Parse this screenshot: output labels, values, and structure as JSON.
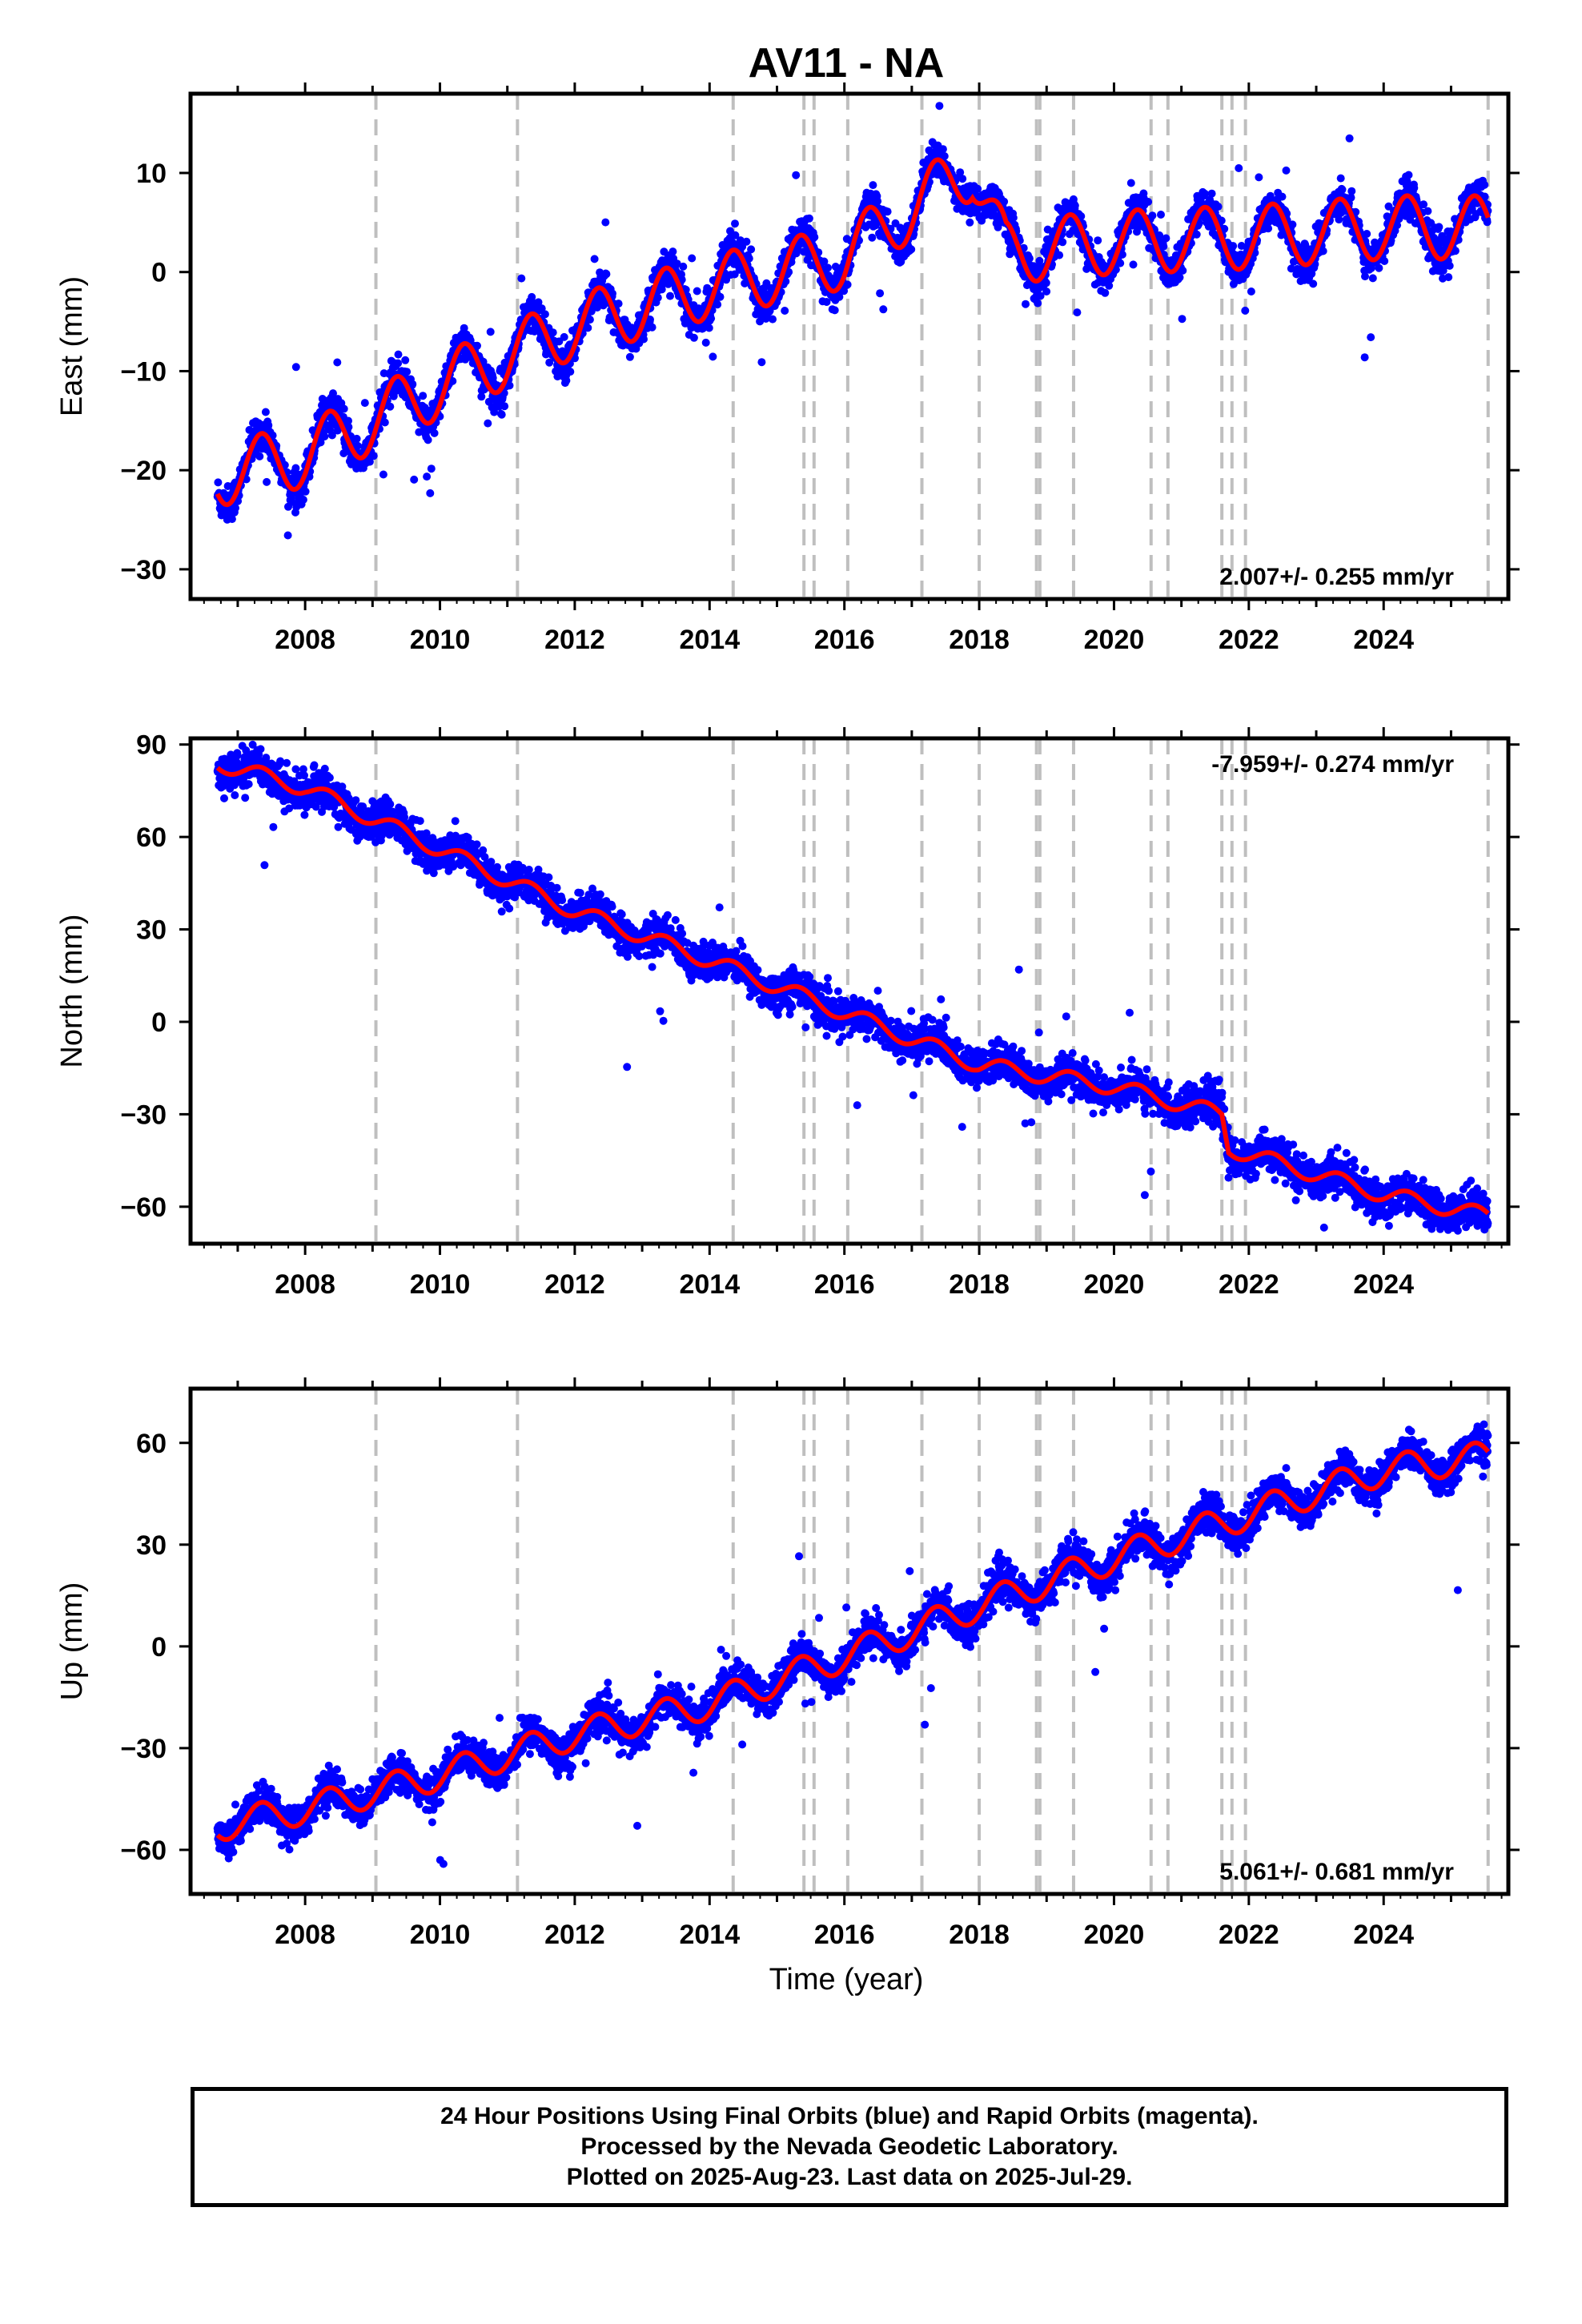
{
  "footer": {
    "line1": "24 Hour Positions Using Final Orbits (blue) and Rapid Orbits (magenta).",
    "line2": "Processed by the Nevada Geodetic Laboratory.",
    "line3": "Plotted on 2025-Aug-23. Last data on 2025-Jul-29."
  },
  "colors": {
    "observations": "#0000ff",
    "model": "#ff0000",
    "offset_lines": "#bfbfbf",
    "frame": "#000000"
  },
  "chart_data": [
    {
      "type": "scatter",
      "title": "AV11 - NA",
      "ylabel": "East (mm)",
      "xlabel": "",
      "xlim": [
        2006.3,
        2025.85
      ],
      "ylim": [
        -33,
        18
      ],
      "xticks": [
        2008,
        2010,
        2012,
        2014,
        2016,
        2018,
        2020,
        2022,
        2024
      ],
      "yticks": [
        -30,
        -20,
        -10,
        0,
        10
      ],
      "rate_label": "2.007+/- 0.255 mm/yr",
      "rate_position": "bottom-right",
      "offset_epochs": [
        2009.05,
        2011.15,
        2014.35,
        2015.4,
        2015.55,
        2016.05,
        2017.15,
        2018.0,
        2018.85,
        2018.9,
        2019.4,
        2020.55,
        2020.8,
        2021.6,
        2021.75,
        2021.95,
        2025.55
      ],
      "model_anchors": {
        "x": [
          2006.7,
          2008,
          2010,
          2012,
          2014,
          2016,
          2017,
          2017.9,
          2018.4,
          2020,
          2022,
          2024,
          2025.55
        ],
        "y": [
          -20.5,
          -18.5,
          -11.5,
          -5.5,
          -1.5,
          1.5,
          6.5,
          10.5,
          2.0,
          3.0,
          3.5,
          4.5,
          4.5
        ]
      },
      "seasonal_amplitude": 3.2,
      "series": [
        {
          "name": "24 Hour Positions",
          "values": []
        }
      ]
    },
    {
      "type": "scatter",
      "title": "",
      "ylabel": "North (mm)",
      "xlabel": "",
      "xlim": [
        2006.3,
        2025.85
      ],
      "ylim": [
        -72,
        92
      ],
      "xticks": [
        2008,
        2010,
        2012,
        2014,
        2016,
        2018,
        2020,
        2022,
        2024
      ],
      "yticks": [
        -60,
        -30,
        0,
        30,
        60,
        90
      ],
      "rate_label": "-7.959+/- 0.274 mm/yr",
      "rate_position": "top-right",
      "offset_epochs": [
        2009.05,
        2011.15,
        2014.35,
        2015.4,
        2015.55,
        2016.05,
        2017.15,
        2018.0,
        2018.85,
        2018.9,
        2019.4,
        2020.55,
        2020.8,
        2021.6,
        2021.75,
        2021.95,
        2025.55
      ],
      "model_anchors": {
        "x": [
          2006.7,
          2008,
          2010,
          2012,
          2014,
          2016,
          2018,
          2020,
          2021.6,
          2021.7,
          2024,
          2025.55
        ],
        "y": [
          84,
          76,
          56,
          36,
          20,
          3,
          -14,
          -21,
          -30,
          -41,
          -56,
          -63
        ]
      },
      "seasonal_amplitude": 2.6,
      "series": [
        {
          "name": "24 Hour Positions",
          "values": []
        }
      ]
    },
    {
      "type": "scatter",
      "title": "",
      "ylabel": "Up (mm)",
      "xlabel": "Time (year)",
      "xlim": [
        2006.3,
        2025.85
      ],
      "ylim": [
        -73,
        76
      ],
      "xticks": [
        2008,
        2010,
        2012,
        2014,
        2016,
        2018,
        2020,
        2022,
        2024
      ],
      "yticks": [
        -60,
        -30,
        0,
        30,
        60
      ],
      "rate_label": "5.061+/- 0.681 mm/yr",
      "rate_position": "bottom-right",
      "offset_epochs": [
        2009.05,
        2011.15,
        2014.35,
        2015.4,
        2015.55,
        2016.05,
        2017.15,
        2018.0,
        2018.85,
        2018.9,
        2019.4,
        2020.55,
        2020.8,
        2021.6,
        2021.75,
        2021.95,
        2025.55
      ],
      "model_anchors": {
        "x": [
          2006.7,
          2008,
          2010,
          2012,
          2014,
          2016,
          2018,
          2020,
          2022,
          2024,
          2025.55
        ],
        "y": [
          -53,
          -48,
          -38,
          -26,
          -17,
          -3,
          12,
          26,
          39,
          52,
          56
        ]
      },
      "seasonal_amplitude": 4.5,
      "series": [
        {
          "name": "24 Hour Positions",
          "values": []
        }
      ]
    }
  ]
}
